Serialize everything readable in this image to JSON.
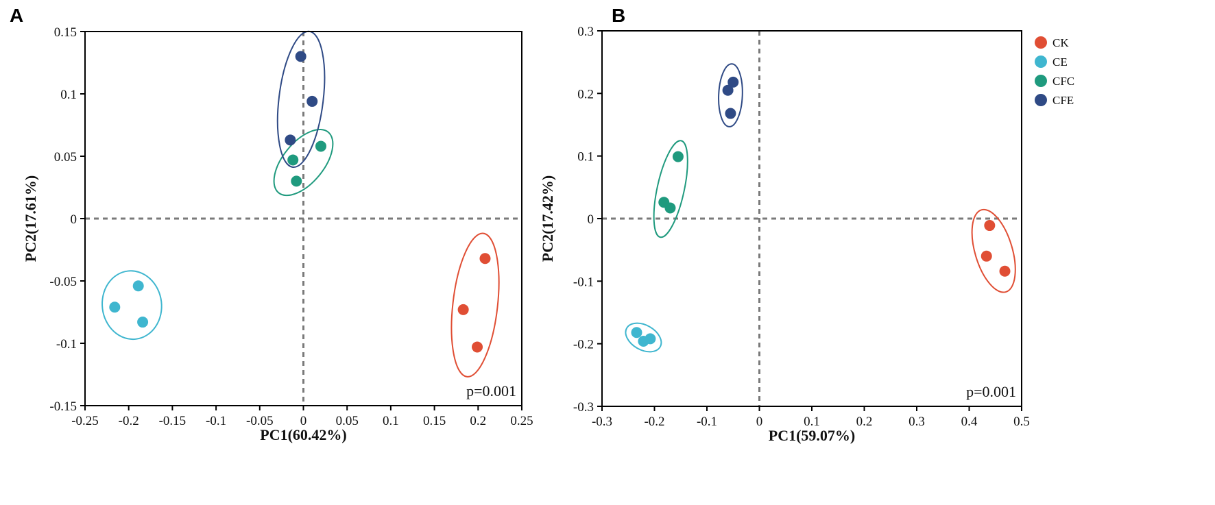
{
  "colors": {
    "CK": "#E04E34",
    "CE": "#3FB6CF",
    "CFC": "#1F9A7E",
    "CFE": "#2F4A85",
    "zero_line": "#7a7a7a",
    "axis": "#000000"
  },
  "legend": {
    "placement": "top-right",
    "items": [
      {
        "name": "CK",
        "color": "#E04E34"
      },
      {
        "name": "CE",
        "color": "#3FB6CF"
      },
      {
        "name": "CFC",
        "color": "#1F9A7E"
      },
      {
        "name": "CFE",
        "color": "#2F4A85"
      }
    ]
  },
  "chart_data": [
    {
      "panel": "A",
      "type": "scatter",
      "xlabel": "PC1(60.42%)",
      "ylabel": "PC2(17.61%)",
      "xlim": [
        -0.25,
        0.25
      ],
      "ylim": [
        -0.15,
        0.15
      ],
      "xticks": [
        -0.25,
        -0.2,
        -0.15,
        -0.1,
        -0.05,
        0,
        0.05,
        0.1,
        0.15,
        0.2,
        0.25
      ],
      "xtick_labels": [
        "-0.25",
        "-0.2",
        "-0.15",
        "-0.1",
        "-0.05",
        "0",
        "0.05",
        "0.1",
        "0.15",
        "0.2",
        "0.25"
      ],
      "yticks": [
        -0.15,
        -0.1,
        -0.05,
        0,
        0.05,
        0.1,
        0.15
      ],
      "ytick_labels": [
        "-0.15",
        "-0.1",
        "-0.05",
        "0",
        "0.05",
        "0.1",
        "0.15"
      ],
      "annotation": "p=0.001",
      "series": [
        {
          "name": "CK",
          "x": [
            0.208,
            0.183,
            0.199
          ],
          "y": [
            -0.032,
            -0.073,
            -0.103
          ]
        },
        {
          "name": "CE",
          "x": [
            -0.189,
            -0.216,
            -0.184
          ],
          "y": [
            -0.054,
            -0.071,
            -0.083
          ]
        },
        {
          "name": "CFC",
          "x": [
            0.02,
            -0.012,
            -0.008
          ],
          "y": [
            0.058,
            0.047,
            0.03
          ]
        },
        {
          "name": "CFE",
          "x": [
            -0.003,
            0.01,
            -0.015
          ],
          "y": [
            0.13,
            0.094,
            0.063
          ]
        }
      ]
    },
    {
      "panel": "B",
      "type": "scatter",
      "xlabel": "PC1(59.07%)",
      "ylabel": "PC2(17.42%)",
      "xlim": [
        -0.3,
        0.5
      ],
      "ylim": [
        -0.3,
        0.3
      ],
      "xticks": [
        -0.3,
        -0.2,
        -0.1,
        0,
        0.1,
        0.2,
        0.3,
        0.4,
        0.5
      ],
      "xtick_labels": [
        "-0.3",
        "-0.2",
        "-0.1",
        "0",
        "0.1",
        "0.2",
        "0.3",
        "0.4",
        "0.5"
      ],
      "yticks": [
        -0.3,
        -0.2,
        -0.1,
        0,
        0.1,
        0.2,
        0.3
      ],
      "ytick_labels": [
        "-0.3",
        "-0.2",
        "-0.1",
        "0",
        "0.1",
        "0.2",
        "0.3"
      ],
      "annotation": "p=0.001",
      "series": [
        {
          "name": "CK",
          "x": [
            0.439,
            0.433,
            0.468
          ],
          "y": [
            -0.011,
            -0.06,
            -0.084
          ]
        },
        {
          "name": "CE",
          "x": [
            -0.234,
            -0.221,
            -0.208
          ],
          "y": [
            -0.182,
            -0.196,
            -0.192
          ]
        },
        {
          "name": "CFC",
          "x": [
            -0.155,
            -0.182,
            -0.17
          ],
          "y": [
            0.099,
            0.026,
            0.017
          ]
        },
        {
          "name": "CFE",
          "x": [
            -0.06,
            -0.05,
            -0.055
          ],
          "y": [
            0.205,
            0.218,
            0.168
          ]
        }
      ]
    }
  ]
}
